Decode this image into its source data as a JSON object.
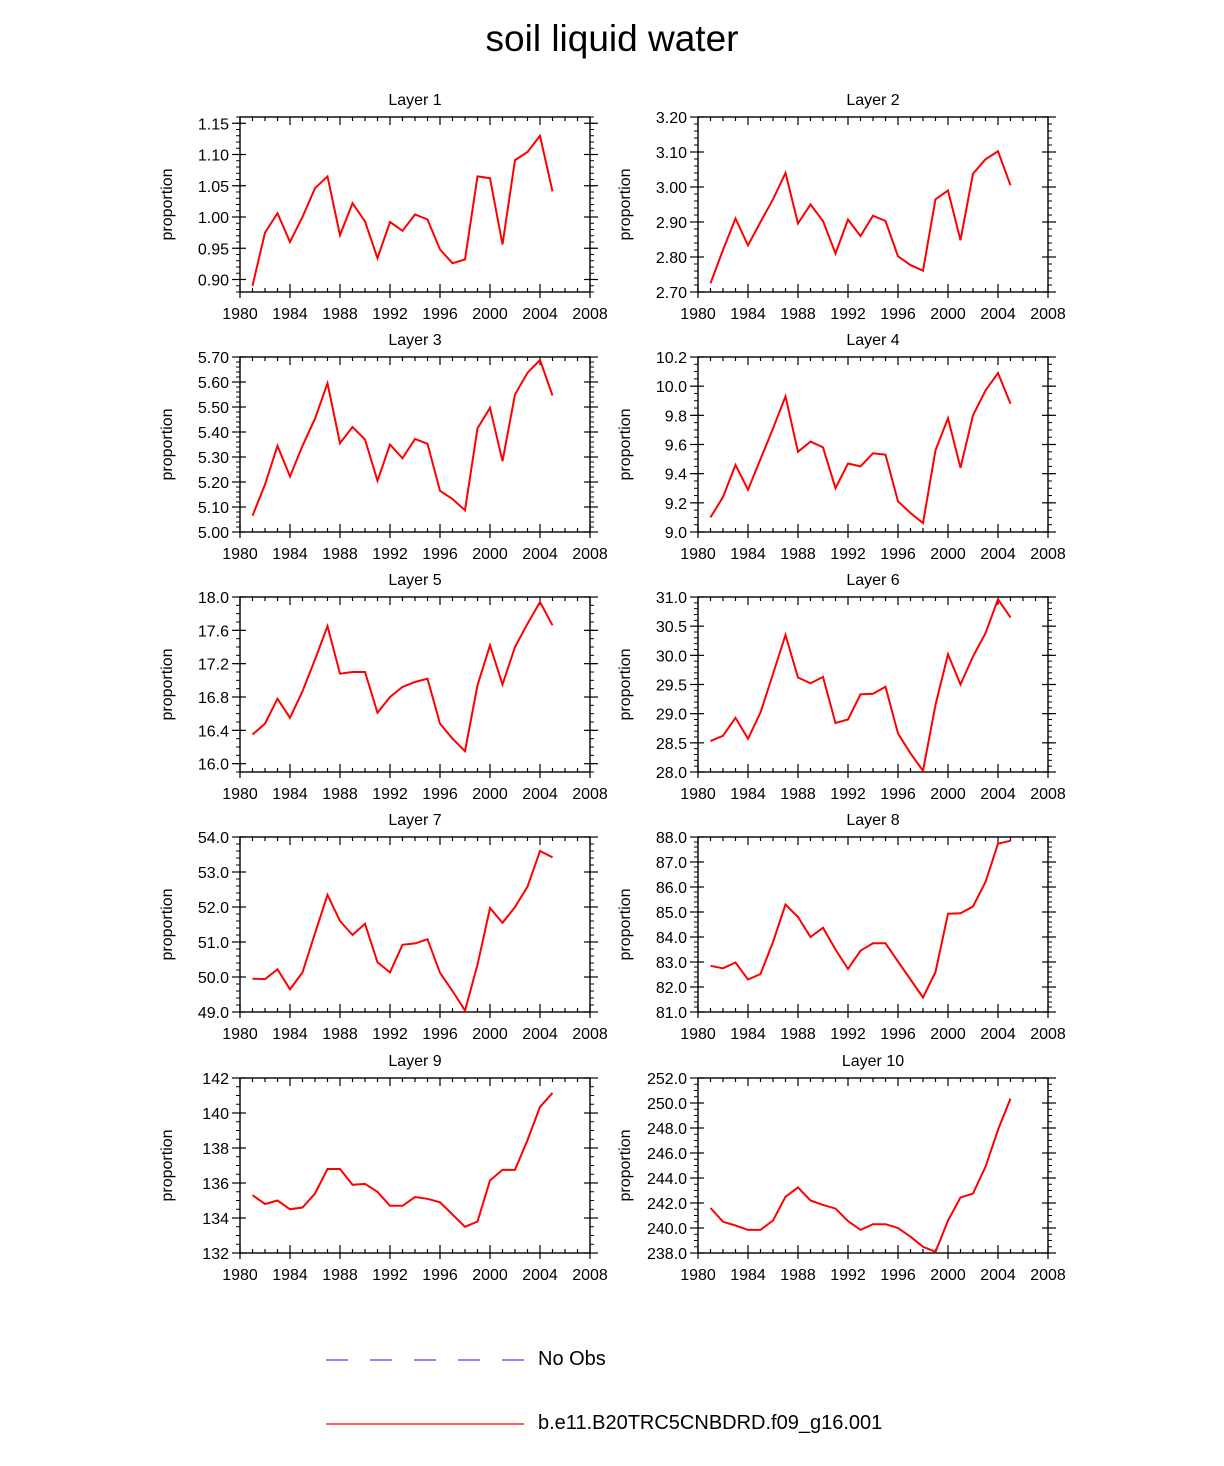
{
  "title": "soil liquid water",
  "colors": {
    "model_line": "#ff0000",
    "obs_line": "#4040ff",
    "axis": "#000000"
  },
  "legend": [
    {
      "label": "No Obs",
      "style": "dashed",
      "color": "#4040ff"
    },
    {
      "label": "b.e11.B20TRC5CNBDRD.f09_g16.001",
      "style": "solid",
      "color": "#ff0000"
    }
  ],
  "chart_data": [
    {
      "type": "line",
      "title": "Layer 1",
      "xlabel": "",
      "ylabel": "proportion",
      "xlim": [
        1980,
        2008
      ],
      "xticks": [
        1980,
        1984,
        1988,
        1992,
        1996,
        2000,
        2004,
        2008
      ],
      "ylim": [
        0.88,
        1.16
      ],
      "yticks": [
        "0.90",
        "0.95",
        "1.00",
        "1.05",
        "1.10",
        "1.15"
      ],
      "yminor": 0.01,
      "series": [
        {
          "name": "b.e11.B20TRC5CNBDRD.f09_g16.001",
          "x": [
            1981,
            1982,
            1983,
            1984,
            1985,
            1986,
            1987,
            1988,
            1989,
            1990,
            1991,
            1992,
            1993,
            1994,
            1995,
            1996,
            1997,
            1998,
            1999,
            2000,
            2001,
            2002,
            2003,
            2004,
            2005
          ],
          "y": [
            0.89,
            0.975,
            1.006,
            0.96,
            1.0,
            1.046,
            1.065,
            0.971,
            1.022,
            0.993,
            0.934,
            0.992,
            0.978,
            1.004,
            0.996,
            0.948,
            0.926,
            0.932,
            1.065,
            1.062,
            0.956,
            1.091,
            1.104,
            1.13,
            1.041
          ]
        }
      ]
    },
    {
      "type": "line",
      "title": "Layer 2",
      "xlabel": "",
      "ylabel": "proportion",
      "xlim": [
        1980,
        2008
      ],
      "xticks": [
        1980,
        1984,
        1988,
        1992,
        1996,
        2000,
        2004,
        2008
      ],
      "ylim": [
        2.7,
        3.2
      ],
      "yticks": [
        "2.70",
        "2.80",
        "2.90",
        "3.00",
        "3.10",
        "3.20"
      ],
      "yminor": 0.02,
      "series": [
        {
          "name": "b.e11.B20TRC5CNBDRD.f09_g16.001",
          "x": [
            1981,
            1982,
            1983,
            1984,
            1985,
            1986,
            1987,
            1988,
            1989,
            1990,
            1991,
            1992,
            1993,
            1994,
            1995,
            1996,
            1997,
            1998,
            1999,
            2000,
            2001,
            2002,
            2003,
            2004,
            2005
          ],
          "y": [
            2.725,
            2.82,
            2.91,
            2.833,
            2.9,
            2.965,
            3.04,
            2.896,
            2.95,
            2.903,
            2.81,
            2.907,
            2.86,
            2.918,
            2.903,
            2.802,
            2.777,
            2.761,
            2.965,
            2.99,
            2.848,
            3.038,
            3.079,
            3.102,
            3.005
          ]
        }
      ]
    },
    {
      "type": "line",
      "title": "Layer 3",
      "xlabel": "",
      "ylabel": "proportion",
      "xlim": [
        1980,
        2008
      ],
      "xticks": [
        1980,
        1984,
        1988,
        1992,
        1996,
        2000,
        2004,
        2008
      ],
      "ylim": [
        5.0,
        5.7
      ],
      "yticks": [
        "5.00",
        "5.10",
        "5.20",
        "5.30",
        "5.40",
        "5.50",
        "5.60",
        "5.70"
      ],
      "yminor": 0.02,
      "series": [
        {
          "name": "b.e11.B20TRC5CNBDRD.f09_g16.001",
          "x": [
            1981,
            1982,
            1983,
            1984,
            1985,
            1986,
            1987,
            1988,
            1989,
            1990,
            1991,
            1992,
            1993,
            1994,
            1995,
            1996,
            1997,
            1998,
            1999,
            2000,
            2001,
            2002,
            2003,
            2004,
            2005
          ],
          "y": [
            5.065,
            5.19,
            5.345,
            5.222,
            5.345,
            5.453,
            5.595,
            5.355,
            5.42,
            5.37,
            5.205,
            5.35,
            5.295,
            5.372,
            5.353,
            5.165,
            5.132,
            5.087,
            5.415,
            5.497,
            5.283,
            5.55,
            5.637,
            5.688,
            5.546
          ]
        }
      ]
    },
    {
      "type": "line",
      "title": "Layer 4",
      "xlabel": "",
      "ylabel": "proportion",
      "xlim": [
        1980,
        2008
      ],
      "xticks": [
        1980,
        1984,
        1988,
        1992,
        1996,
        2000,
        2004,
        2008
      ],
      "ylim": [
        9.0,
        10.2
      ],
      "yticks": [
        "9.0",
        "9.2",
        "9.4",
        "9.6",
        "9.8",
        "10.0",
        "10.2"
      ],
      "yminor": 0.05,
      "series": [
        {
          "name": "b.e11.B20TRC5CNBDRD.f09_g16.001",
          "x": [
            1981,
            1982,
            1983,
            1984,
            1985,
            1986,
            1987,
            1988,
            1989,
            1990,
            1991,
            1992,
            1993,
            1994,
            1995,
            1996,
            1997,
            1998,
            1999,
            2000,
            2001,
            2002,
            2003,
            2004,
            2005
          ],
          "y": [
            9.1,
            9.24,
            9.46,
            9.29,
            9.5,
            9.71,
            9.93,
            9.55,
            9.62,
            9.58,
            9.3,
            9.47,
            9.45,
            9.54,
            9.53,
            9.21,
            9.13,
            9.06,
            9.56,
            9.78,
            9.44,
            9.8,
            9.97,
            10.09,
            9.88
          ]
        }
      ]
    },
    {
      "type": "line",
      "title": "Layer 5",
      "xlabel": "",
      "ylabel": "proportion",
      "xlim": [
        1980,
        2008
      ],
      "xticks": [
        1980,
        1984,
        1988,
        1992,
        1996,
        2000,
        2004,
        2008
      ],
      "ylim": [
        15.9,
        18.0
      ],
      "yticks": [
        "16.0",
        "16.4",
        "16.8",
        "17.2",
        "17.6",
        "18.0"
      ],
      "yminor": 0.1,
      "series": [
        {
          "name": "b.e11.B20TRC5CNBDRD.f09_g16.001",
          "x": [
            1981,
            1982,
            1983,
            1984,
            1985,
            1986,
            1987,
            1988,
            1989,
            1990,
            1991,
            1992,
            1993,
            1994,
            1995,
            1996,
            1997,
            1998,
            1999,
            2000,
            2001,
            2002,
            2003,
            2004,
            2005
          ],
          "y": [
            16.35,
            16.48,
            16.78,
            16.55,
            16.87,
            17.25,
            17.65,
            17.08,
            17.1,
            17.1,
            16.61,
            16.8,
            16.92,
            16.98,
            17.02,
            16.48,
            16.3,
            16.15,
            16.94,
            17.42,
            16.95,
            17.4,
            17.68,
            17.94,
            17.66
          ]
        }
      ]
    },
    {
      "type": "line",
      "title": "Layer 6",
      "xlabel": "",
      "ylabel": "proportion",
      "xlim": [
        1980,
        2008
      ],
      "xticks": [
        1980,
        1984,
        1988,
        1992,
        1996,
        2000,
        2004,
        2008
      ],
      "ylim": [
        28.0,
        31.0
      ],
      "yticks": [
        "28.0",
        "28.5",
        "29.0",
        "29.5",
        "30.0",
        "30.5",
        "31.0"
      ],
      "yminor": 0.1,
      "series": [
        {
          "name": "b.e11.B20TRC5CNBDRD.f09_g16.001",
          "x": [
            1981,
            1982,
            1983,
            1984,
            1985,
            1986,
            1987,
            1988,
            1989,
            1990,
            1991,
            1992,
            1993,
            1994,
            1995,
            1996,
            1997,
            1998,
            1999,
            2000,
            2001,
            2002,
            2003,
            2004,
            2005
          ],
          "y": [
            28.53,
            28.62,
            28.93,
            28.57,
            29.02,
            29.68,
            30.35,
            29.62,
            29.52,
            29.63,
            28.84,
            28.9,
            29.33,
            29.34,
            29.46,
            28.66,
            28.32,
            28.02,
            29.15,
            30.02,
            29.5,
            29.98,
            30.38,
            30.96,
            30.65
          ]
        }
      ]
    },
    {
      "type": "line",
      "title": "Layer 7",
      "xlabel": "",
      "ylabel": "proportion",
      "xlim": [
        1980,
        2008
      ],
      "xticks": [
        1980,
        1984,
        1988,
        1992,
        1996,
        2000,
        2004,
        2008
      ],
      "ylim": [
        49.0,
        54.0
      ],
      "yticks": [
        "49.0",
        "50.0",
        "51.0",
        "52.0",
        "53.0",
        "54.0"
      ],
      "yminor": 0.2,
      "series": [
        {
          "name": "b.e11.B20TRC5CNBDRD.f09_g16.001",
          "x": [
            1981,
            1982,
            1983,
            1984,
            1985,
            1986,
            1987,
            1988,
            1989,
            1990,
            1991,
            1992,
            1993,
            1994,
            1995,
            1996,
            1997,
            1998,
            1999,
            2000,
            2001,
            2002,
            2003,
            2004,
            2005
          ],
          "y": [
            49.95,
            49.94,
            50.22,
            49.65,
            50.13,
            51.25,
            52.35,
            51.6,
            51.2,
            51.52,
            50.42,
            50.13,
            50.92,
            50.96,
            51.08,
            50.12,
            49.6,
            49.04,
            50.35,
            51.97,
            51.55,
            52.0,
            52.58,
            53.6,
            53.42
          ]
        }
      ]
    },
    {
      "type": "line",
      "title": "Layer 8",
      "xlabel": "",
      "ylabel": "proportion",
      "xlim": [
        1980,
        2008
      ],
      "xticks": [
        1980,
        1984,
        1988,
        1992,
        1996,
        2000,
        2004,
        2008
      ],
      "ylim": [
        81.0,
        88.0
      ],
      "yticks": [
        "81.0",
        "82.0",
        "83.0",
        "84.0",
        "85.0",
        "86.0",
        "87.0",
        "88.0"
      ],
      "yminor": 0.2,
      "series": [
        {
          "name": "b.e11.B20TRC5CNBDRD.f09_g16.001",
          "x": [
            1981,
            1982,
            1983,
            1984,
            1985,
            1986,
            1987,
            1988,
            1989,
            1990,
            1991,
            1992,
            1993,
            1994,
            1995,
            1996,
            1997,
            1998,
            1999,
            2000,
            2001,
            2002,
            2003,
            2004,
            2005
          ],
          "y": [
            82.85,
            82.75,
            82.98,
            82.3,
            82.52,
            83.8,
            85.3,
            84.8,
            84.0,
            84.37,
            83.5,
            82.72,
            83.45,
            83.75,
            83.75,
            83.02,
            82.3,
            81.58,
            82.6,
            84.93,
            84.95,
            85.22,
            86.2,
            87.73,
            87.85
          ]
        }
      ]
    },
    {
      "type": "line",
      "title": "Layer 9",
      "xlabel": "",
      "ylabel": "proportion",
      "xlim": [
        1980,
        2008
      ],
      "xticks": [
        1980,
        1984,
        1988,
        1992,
        1996,
        2000,
        2004,
        2008
      ],
      "ylim": [
        132,
        142
      ],
      "yticks": [
        "132",
        "134",
        "136",
        "138",
        "140",
        "142"
      ],
      "yminor": 0.5,
      "series": [
        {
          "name": "b.e11.B20TRC5CNBDRD.f09_g16.001",
          "x": [
            1981,
            1982,
            1983,
            1984,
            1985,
            1986,
            1987,
            1988,
            1989,
            1990,
            1991,
            1992,
            1993,
            1994,
            1995,
            1996,
            1997,
            1998,
            1999,
            2000,
            2001,
            2002,
            2003,
            2004,
            2005
          ],
          "y": [
            135.3,
            134.8,
            135.0,
            134.5,
            134.6,
            135.4,
            136.8,
            136.8,
            135.9,
            135.95,
            135.5,
            134.7,
            134.7,
            135.2,
            135.1,
            134.9,
            134.2,
            133.5,
            133.8,
            136.15,
            136.75,
            136.75,
            138.45,
            140.35,
            141.15
          ]
        }
      ]
    },
    {
      "type": "line",
      "title": "Layer 10",
      "xlabel": "",
      "ylabel": "proportion",
      "xlim": [
        1980,
        2008
      ],
      "xticks": [
        1980,
        1984,
        1988,
        1992,
        1996,
        2000,
        2004,
        2008
      ],
      "ylim": [
        238.0,
        252.0
      ],
      "yticks": [
        "238.0",
        "240.0",
        "242.0",
        "244.0",
        "246.0",
        "248.0",
        "250.0",
        "252.0"
      ],
      "yminor": 0.5,
      "series": [
        {
          "name": "b.e11.B20TRC5CNBDRD.f09_g16.001",
          "x": [
            1981,
            1982,
            1983,
            1984,
            1985,
            1986,
            1987,
            1988,
            1989,
            1990,
            1991,
            1992,
            1993,
            1994,
            1995,
            1996,
            1997,
            1998,
            1999,
            2000,
            2001,
            2002,
            2003,
            2004,
            2005
          ],
          "y": [
            241.6,
            240.5,
            240.2,
            239.85,
            239.85,
            240.6,
            242.5,
            243.25,
            242.2,
            241.85,
            241.55,
            240.55,
            239.85,
            240.3,
            240.3,
            240.0,
            239.3,
            238.5,
            238.1,
            240.6,
            242.45,
            242.75,
            244.9,
            247.85,
            250.35
          ]
        }
      ]
    }
  ]
}
